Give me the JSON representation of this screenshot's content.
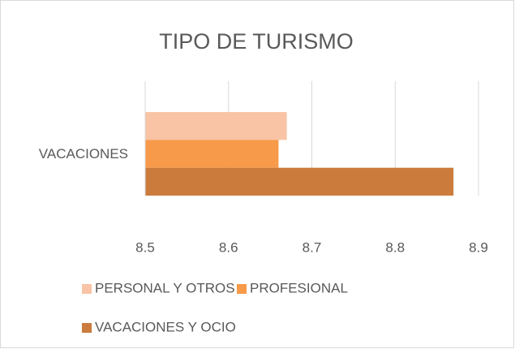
{
  "chart_data": {
    "type": "barh",
    "title": "TIPO DE TURISMO",
    "categories": [
      "VACACIONES"
    ],
    "series": [
      {
        "name": "PERSONAL Y OTROS",
        "color": "#f9c4a6",
        "values": [
          8.67
        ]
      },
      {
        "name": "PROFESIONAL",
        "color": "#f79a4a",
        "values": [
          8.66
        ]
      },
      {
        "name": "VACACIONES Y OCIO",
        "color": "#cb7b3c",
        "values": [
          8.87
        ]
      }
    ],
    "xlim": [
      8.5,
      8.9
    ],
    "xticks": [
      8.5,
      8.6,
      8.7,
      8.8,
      8.9
    ],
    "grid": true,
    "legend": "bottom"
  }
}
